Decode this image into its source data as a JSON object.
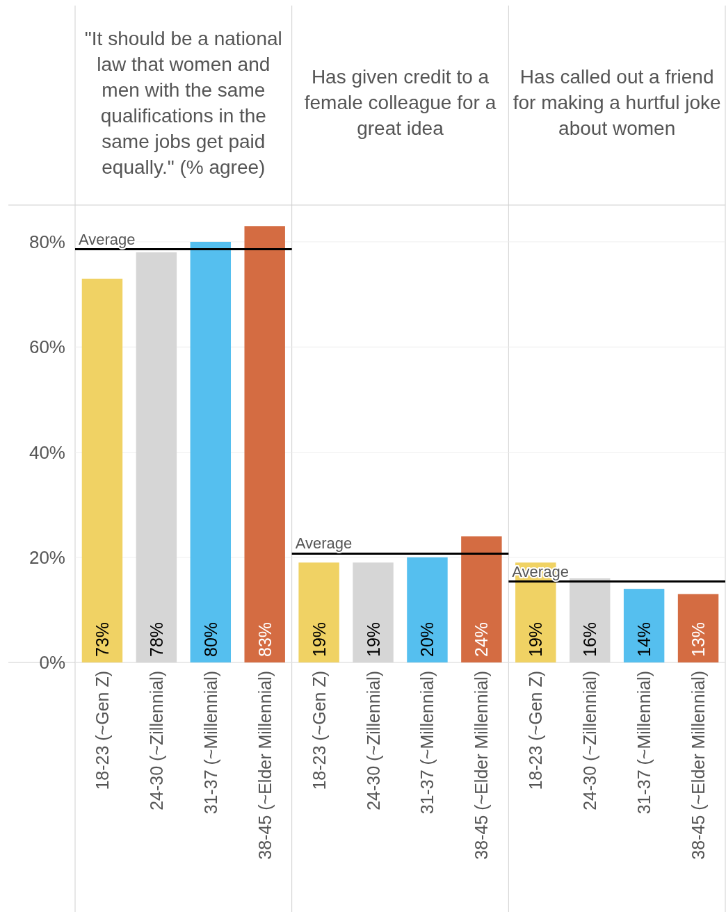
{
  "chart_data": [
    {
      "type": "bar",
      "title": "\"It should be a national law that women and men with the same qualifications in the same jobs get paid equally.\" (% agree)",
      "categories": [
        "18-23 (~Gen Z)",
        "24-30 (~Zillennial)",
        "31-37 (~Millennial)",
        "38-45 (~Elder Millennial)"
      ],
      "values": [
        73,
        78,
        80,
        83
      ],
      "value_labels": [
        "73%",
        "78%",
        "80%",
        "83%"
      ],
      "colors": [
        "#f0d264",
        "#d6d6d6",
        "#55bfef",
        "#d46c42"
      ],
      "ylim": [
        0,
        87
      ],
      "yticks": [
        {
          "value": 0,
          "label": "0%"
        },
        {
          "value": 20,
          "label": "20%"
        },
        {
          "value": 40,
          "label": "40%"
        },
        {
          "value": 60,
          "label": "60%"
        },
        {
          "value": 80,
          "label": "80%"
        }
      ],
      "grid": "y",
      "ref_lines": [
        {
          "axis": "y",
          "value": 78.6,
          "label": "Average",
          "color": "#000000"
        }
      ]
    },
    {
      "type": "bar",
      "title": "Has given credit to a female colleague for a great idea",
      "categories": [
        "18-23 (~Gen Z)",
        "24-30 (~Zillennial)",
        "31-37 (~Millennial)",
        "38-45 (~Elder Millennial)"
      ],
      "values": [
        19,
        19,
        20,
        24
      ],
      "value_labels": [
        "19%",
        "19%",
        "20%",
        "24%"
      ],
      "colors": [
        "#f0d264",
        "#d6d6d6",
        "#55bfef",
        "#d46c42"
      ],
      "ylim": [
        0,
        87
      ],
      "yticks": [
        {
          "value": 0,
          "label": null
        },
        {
          "value": 20,
          "label": null
        },
        {
          "value": 40,
          "label": null
        },
        {
          "value": 60,
          "label": null
        },
        {
          "value": 80,
          "label": null
        }
      ],
      "grid": "y",
      "tick_labels": "x",
      "ref_lines": [
        {
          "axis": "y",
          "value": 20.7,
          "label": "Average",
          "color": "#000000"
        }
      ]
    },
    {
      "type": "bar",
      "title": "Has called out a friend for making a hurtful joke about women",
      "categories": [
        "18-23 (~Gen Z)",
        "24-30 (~Zillennial)",
        "31-37 (~Millennial)",
        "38-45 (~Elder Millennial)"
      ],
      "values": [
        19,
        16,
        14,
        13
      ],
      "value_labels": [
        "19%",
        "16%",
        "14%",
        "13%"
      ],
      "colors": [
        "#f0d264",
        "#d6d6d6",
        "#55bfef",
        "#d46c42"
      ],
      "ylim": [
        0,
        87
      ],
      "yticks": [
        {
          "value": 0,
          "label": null
        },
        {
          "value": 20,
          "label": null
        },
        {
          "value": 40,
          "label": null
        },
        {
          "value": 60,
          "label": null
        },
        {
          "value": 80,
          "label": null
        }
      ],
      "grid": "y",
      "tick_labels": "x",
      "ref_lines": [
        {
          "axis": "y",
          "value": 15.4,
          "label": "Average",
          "color": "#000000"
        }
      ]
    }
  ]
}
